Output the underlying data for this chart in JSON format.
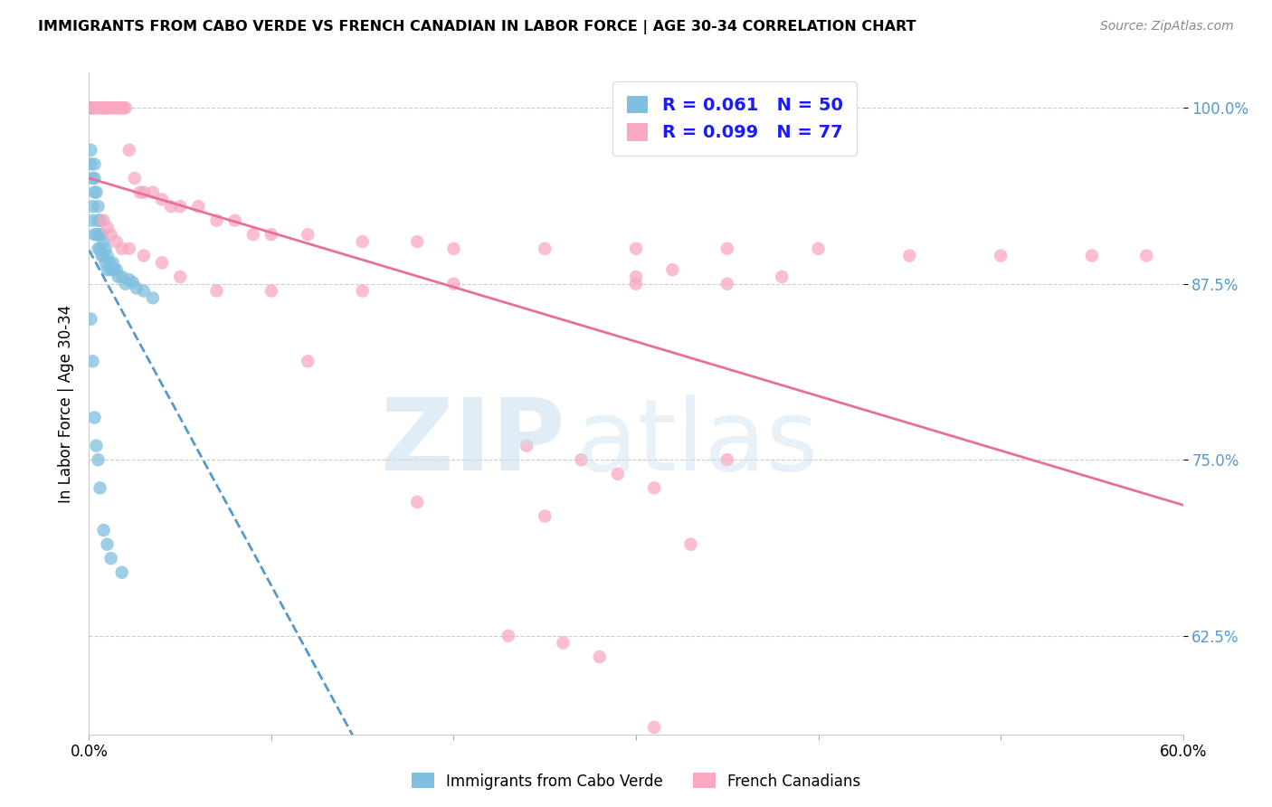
{
  "title": "IMMIGRANTS FROM CABO VERDE VS FRENCH CANADIAN IN LABOR FORCE | AGE 30-34 CORRELATION CHART",
  "source": "Source: ZipAtlas.com",
  "ylabel": "In Labor Force | Age 30-34",
  "xlim": [
    0.0,
    0.6
  ],
  "ylim": [
    0.555,
    1.025
  ],
  "yticks": [
    0.625,
    0.75,
    0.875,
    1.0
  ],
  "ytick_labels": [
    "62.5%",
    "75.0%",
    "87.5%",
    "100.0%"
  ],
  "cabo_verde_R": 0.061,
  "cabo_verde_N": 50,
  "french_canadian_R": 0.099,
  "french_canadian_N": 77,
  "cabo_verde_color": "#7fbfdf",
  "french_canadian_color": "#f9a8c0",
  "cabo_verde_line_color": "#5599cc",
  "french_canadian_line_color": "#e87098",
  "legend_text_color": "#1a1aff",
  "background_color": "#ffffff",
  "cabo_verde_x": [
    0.001,
    0.001,
    0.001,
    0.002,
    0.002,
    0.002,
    0.002,
    0.003,
    0.003,
    0.003,
    0.003,
    0.004,
    0.004,
    0.005,
    0.005,
    0.005,
    0.006,
    0.006,
    0.006,
    0.007,
    0.007,
    0.008,
    0.008,
    0.009,
    0.009,
    0.01,
    0.01,
    0.011,
    0.012,
    0.013,
    0.014,
    0.015,
    0.016,
    0.018,
    0.02,
    0.022,
    0.024,
    0.026,
    0.03,
    0.035,
    0.001,
    0.002,
    0.003,
    0.004,
    0.005,
    0.006,
    0.008,
    0.01,
    0.012,
    0.018
  ],
  "cabo_verde_y": [
    1.0,
    0.97,
    0.96,
    1.0,
    0.95,
    0.93,
    0.92,
    0.96,
    0.95,
    0.94,
    0.91,
    0.94,
    0.91,
    0.93,
    0.92,
    0.9,
    0.92,
    0.91,
    0.9,
    0.91,
    0.895,
    0.905,
    0.895,
    0.9,
    0.89,
    0.895,
    0.885,
    0.89,
    0.885,
    0.89,
    0.885,
    0.885,
    0.88,
    0.88,
    0.875,
    0.878,
    0.876,
    0.872,
    0.87,
    0.865,
    0.85,
    0.82,
    0.78,
    0.76,
    0.75,
    0.73,
    0.7,
    0.69,
    0.68,
    0.67
  ],
  "french_canadian_x": [
    0.002,
    0.003,
    0.004,
    0.005,
    0.006,
    0.007,
    0.008,
    0.008,
    0.009,
    0.01,
    0.01,
    0.011,
    0.012,
    0.013,
    0.014,
    0.015,
    0.016,
    0.017,
    0.018,
    0.019,
    0.02,
    0.022,
    0.025,
    0.028,
    0.03,
    0.035,
    0.04,
    0.045,
    0.05,
    0.06,
    0.07,
    0.08,
    0.09,
    0.1,
    0.12,
    0.15,
    0.18,
    0.2,
    0.25,
    0.3,
    0.35,
    0.4,
    0.45,
    0.5,
    0.55,
    0.58,
    0.008,
    0.01,
    0.012,
    0.015,
    0.018,
    0.022,
    0.03,
    0.04,
    0.05,
    0.07,
    0.1,
    0.15,
    0.2,
    0.3,
    0.35,
    0.38,
    0.3,
    0.32,
    0.12,
    0.18,
    0.25,
    0.33,
    0.24,
    0.27,
    0.29,
    0.31,
    0.35,
    0.23,
    0.26,
    0.28,
    0.31
  ],
  "french_canadian_y": [
    1.0,
    1.0,
    1.0,
    1.0,
    1.0,
    1.0,
    1.0,
    1.0,
    1.0,
    1.0,
    1.0,
    1.0,
    1.0,
    1.0,
    1.0,
    1.0,
    1.0,
    1.0,
    1.0,
    1.0,
    1.0,
    0.97,
    0.95,
    0.94,
    0.94,
    0.94,
    0.935,
    0.93,
    0.93,
    0.93,
    0.92,
    0.92,
    0.91,
    0.91,
    0.91,
    0.905,
    0.905,
    0.9,
    0.9,
    0.9,
    0.9,
    0.9,
    0.895,
    0.895,
    0.895,
    0.895,
    0.92,
    0.915,
    0.91,
    0.905,
    0.9,
    0.9,
    0.895,
    0.89,
    0.88,
    0.87,
    0.87,
    0.87,
    0.875,
    0.875,
    0.875,
    0.88,
    0.88,
    0.885,
    0.82,
    0.72,
    0.71,
    0.69,
    0.76,
    0.75,
    0.74,
    0.73,
    0.75,
    0.625,
    0.62,
    0.61,
    0.56
  ]
}
